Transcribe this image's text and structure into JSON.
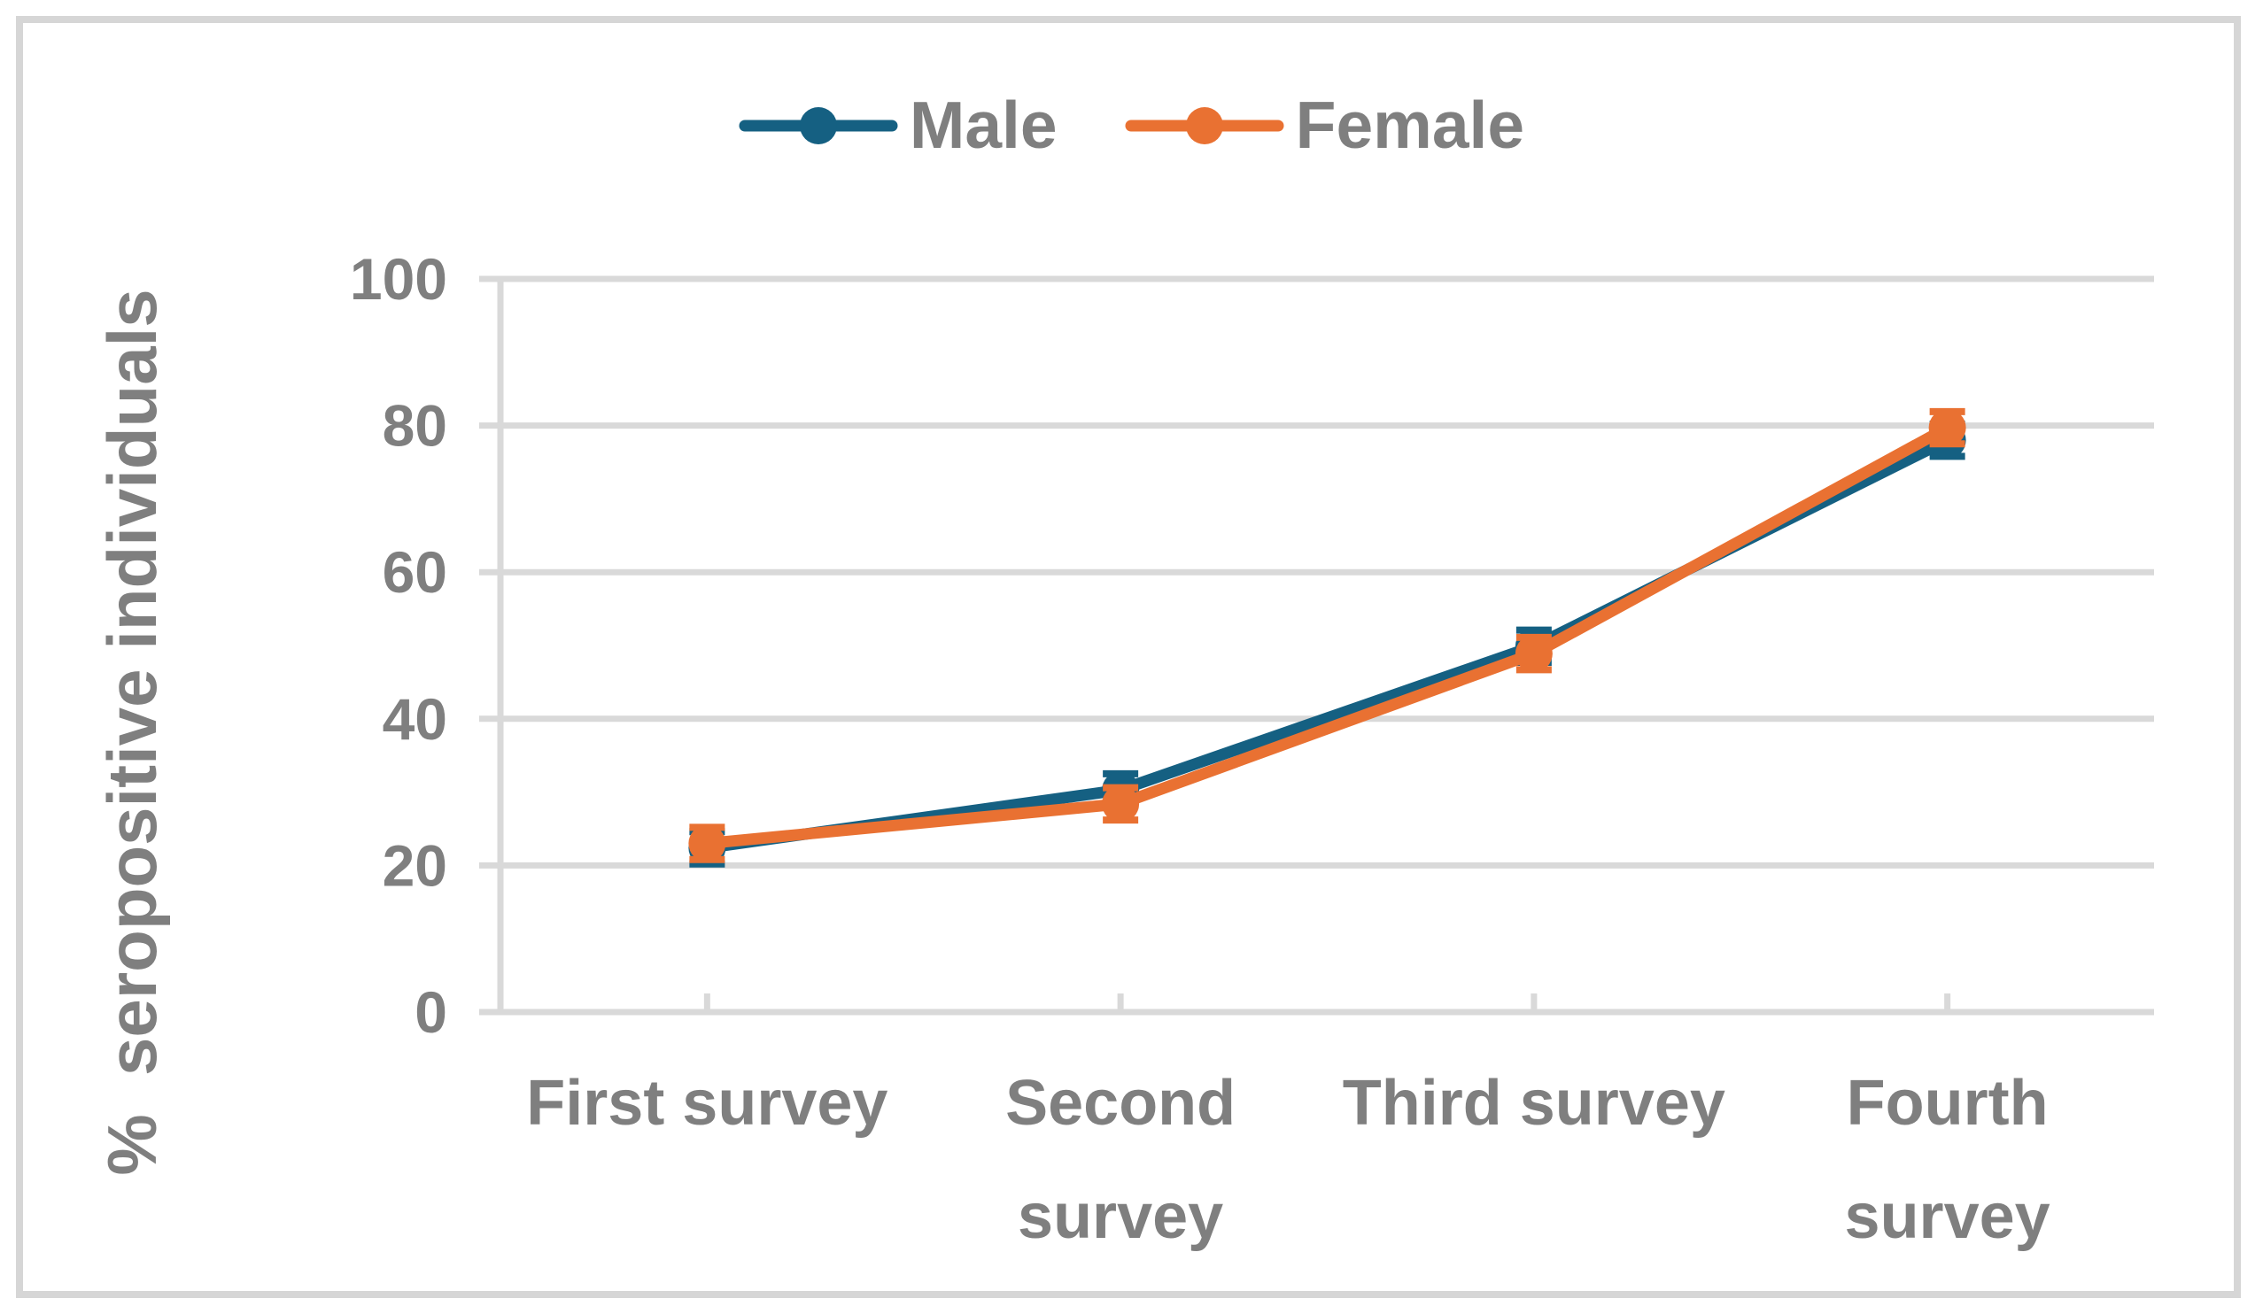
{
  "chart_data": {
    "type": "line",
    "title": "",
    "ylabel": "%  seropositive individuals",
    "xlabel": "",
    "ylim": [
      0,
      100
    ],
    "yticks": [
      0,
      20,
      40,
      60,
      80,
      100
    ],
    "grid": "horizontal",
    "grid_color": "#D9D9D9",
    "text_color": "#7F7F7F",
    "frame_color": "#D6D6D6",
    "legend_position": "top",
    "categories": [
      "First survey",
      "Second survey",
      "Third survey",
      "Fourth survey"
    ],
    "category_label_lines": [
      [
        "First survey"
      ],
      [
        "Second",
        "survey"
      ],
      [
        "Third survey"
      ],
      [
        "Fourth",
        "survey"
      ]
    ],
    "series": [
      {
        "name": "Male",
        "color": "#156082",
        "values": [
          22.4,
          30.3,
          49.9,
          78.0
        ],
        "error": 2.2
      },
      {
        "name": "Female",
        "color": "#E97132",
        "values": [
          23.0,
          28.4,
          48.9,
          79.7
        ],
        "error": 2.2
      }
    ]
  }
}
